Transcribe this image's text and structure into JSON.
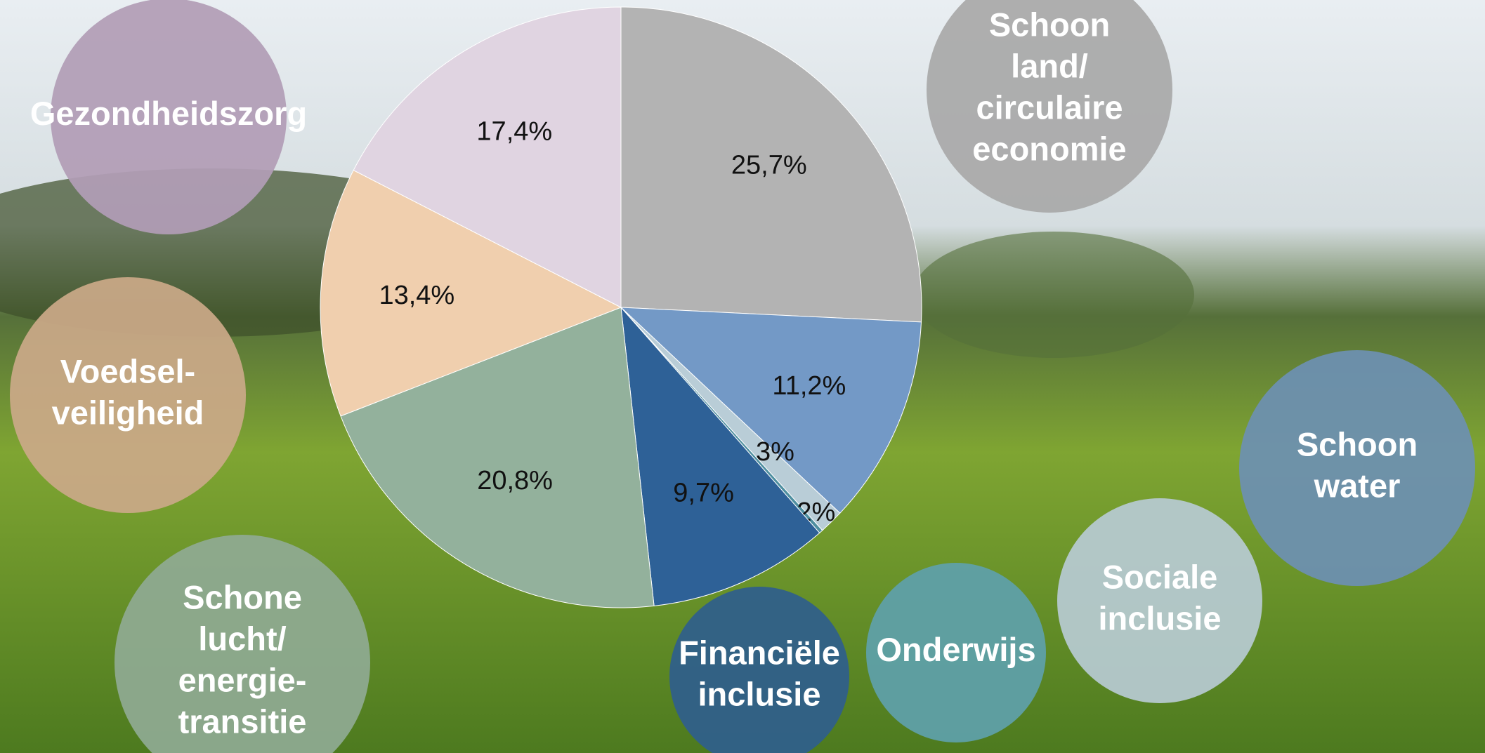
{
  "chart_data": {
    "type": "pie",
    "categories": [
      "Schoon\nland/\ncirculaire\neconomie",
      "Schoon\nwater",
      "Sociale\ninclusie",
      "Onderwijs",
      "Financiële\ninclusie",
      "Schone\nlucht/\nenergie-\ntransitie",
      "Voedsel-\nveiligheid",
      "Gezondheidszorg"
    ],
    "values": [
      25.7,
      11.2,
      1.3,
      0.2,
      9.7,
      20.8,
      13.4,
      17.4
    ],
    "value_labels": [
      "25,7%",
      "11,2%",
      "1,3%",
      "0,2%",
      "9,7%",
      "20,8%",
      "13,4%",
      "17,4%"
    ],
    "colors": [
      "#b3b3b3",
      "#7399c6",
      "#b9cdd7",
      "#4f8fa0",
      "#2e6197",
      "#93b19c",
      "#f0cfae",
      "#e0d4e1"
    ]
  }
}
